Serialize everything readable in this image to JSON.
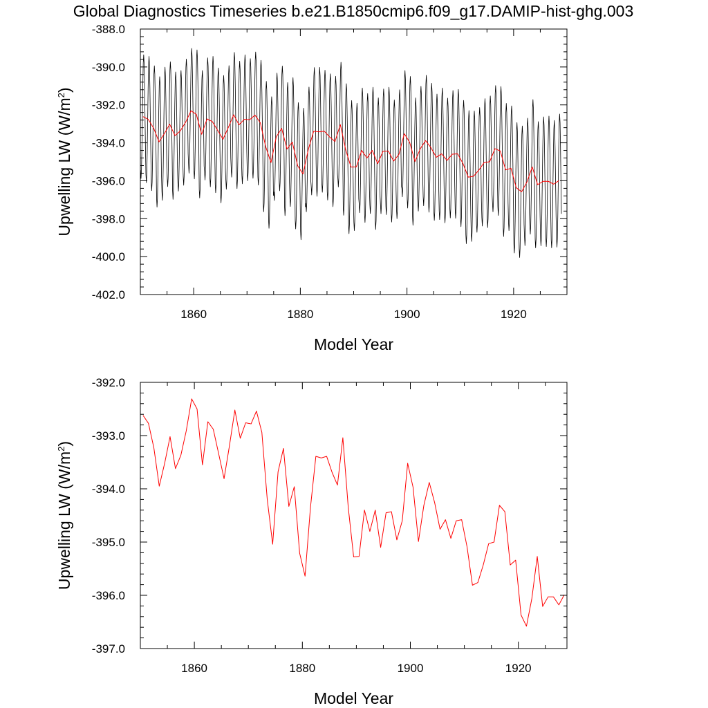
{
  "title": "Global Diagnostics Timeseries b.e21.B1850cmip6.f09_g17.DAMIP-hist-ghg.003",
  "colors": {
    "monthly": "#000000",
    "annual": "#ff0000",
    "axes": "#000000"
  },
  "chart_data": [
    {
      "type": "line",
      "xlabel": "Model Year",
      "ylabel_main": "Upwelling LW (W/m",
      "ylabel_sup": "2",
      "ylabel_close": ")",
      "xlim": [
        1850,
        1930
      ],
      "ylim": [
        -402,
        -388
      ],
      "xticks": [
        1860,
        1880,
        1900,
        1920
      ],
      "xtick_labels": [
        "1860",
        "1880",
        "1900",
        "1920"
      ],
      "yticks": [
        -402,
        -400,
        -398,
        -396,
        -394,
        -392,
        -390,
        -388
      ],
      "ytick_labels": [
        "-402.0",
        "-400.0",
        "-398.0",
        "-396.0",
        "-394.0",
        "-392.0",
        "-390.0",
        "-388.0"
      ],
      "series": [
        {
          "role": "monthly",
          "color": "#000000",
          "monthly_annual_means": [
            -392.62,
            -392.77,
            -393.23,
            -393.95,
            -393.52,
            -393.02,
            -393.62,
            -393.37,
            -392.91,
            -392.31,
            -392.5,
            -393.55,
            -392.74,
            -392.88,
            -393.34,
            -393.81,
            -393.19,
            -392.52,
            -393.05,
            -392.76,
            -392.78,
            -392.54,
            -392.94,
            -394.2,
            -395.04,
            -393.68,
            -393.24,
            -394.33,
            -393.96,
            -395.21,
            -395.64,
            -394.35,
            -393.39,
            -393.42,
            -393.39,
            -393.69,
            -393.93,
            -393.04,
            -394.35,
            -395.28,
            -395.27,
            -394.4,
            -394.8,
            -394.4,
            -395.1,
            -394.45,
            -394.43,
            -394.96,
            -394.6,
            -393.52,
            -393.97,
            -394.99,
            -394.31,
            -393.88,
            -394.26,
            -394.76,
            -394.58,
            -394.93,
            -394.6,
            -394.58,
            -395.09,
            -395.81,
            -395.76,
            -395.43,
            -395.03,
            -395.0,
            -394.31,
            -394.43,
            -395.43,
            -395.34,
            -396.37,
            -396.58,
            -396.06,
            -395.27,
            -396.21,
            -396.03,
            -396.03,
            -396.18,
            -395.99
          ],
          "seasonal_half_amplitudes": [
            3.26,
            3.33,
            3.29,
            3.44,
            3.51,
            3.29,
            3.36,
            3.18,
            3.33,
            3.29,
            3.4,
            3.36,
            3.22,
            3.44,
            3.29,
            3.36,
            3.26,
            3.29,
            3.36,
            3.4,
            3.22,
            3.33,
            3.29,
            3.44,
            3.47,
            3.36,
            3.29,
            3.51,
            3.4,
            3.33,
            3.47,
            3.29,
            3.36,
            3.4,
            3.22,
            3.33,
            3.44,
            3.29,
            3.47,
            3.51,
            3.36,
            3.29,
            3.4,
            3.33,
            3.47,
            3.29,
            3.36,
            3.22,
            3.4,
            3.33,
            3.47,
            3.36,
            3.29,
            3.44,
            3.4,
            3.33,
            3.47,
            3.29,
            3.36,
            3.4,
            3.33,
            3.51,
            3.44,
            3.29,
            3.36,
            3.47,
            3.33,
            3.4,
            3.51,
            3.29,
            3.44,
            3.47,
            3.36,
            3.55,
            3.33,
            3.4,
            3.44,
            3.36,
            3.51
          ]
        },
        {
          "role": "annual",
          "color": "#ff0000",
          "x": [
            1850.5,
            1851.5,
            1852.5,
            1853.5,
            1854.5,
            1855.5,
            1856.5,
            1857.5,
            1858.5,
            1859.5,
            1860.5,
            1861.5,
            1862.5,
            1863.5,
            1864.5,
            1865.5,
            1866.5,
            1867.5,
            1868.5,
            1869.5,
            1870.5,
            1871.5,
            1872.5,
            1873.5,
            1874.5,
            1875.5,
            1876.5,
            1877.5,
            1878.5,
            1879.5,
            1880.5,
            1881.5,
            1882.5,
            1883.5,
            1884.5,
            1885.5,
            1886.5,
            1887.5,
            1888.5,
            1889.5,
            1890.5,
            1891.5,
            1892.5,
            1893.5,
            1894.5,
            1895.5,
            1896.5,
            1897.5,
            1898.5,
            1899.5,
            1900.5,
            1901.5,
            1902.5,
            1903.5,
            1904.5,
            1905.5,
            1906.5,
            1907.5,
            1908.5,
            1909.5,
            1910.5,
            1911.5,
            1912.5,
            1913.5,
            1914.5,
            1915.5,
            1916.5,
            1917.5,
            1918.5,
            1919.5,
            1920.5,
            1921.5,
            1922.5,
            1923.5,
            1924.5,
            1925.5,
            1926.5,
            1927.5,
            1928.5
          ],
          "y": [
            -392.62,
            -392.77,
            -393.23,
            -393.95,
            -393.52,
            -393.02,
            -393.62,
            -393.37,
            -392.91,
            -392.31,
            -392.5,
            -393.55,
            -392.74,
            -392.88,
            -393.34,
            -393.81,
            -393.19,
            -392.52,
            -393.05,
            -392.76,
            -392.78,
            -392.54,
            -392.94,
            -394.2,
            -395.04,
            -393.68,
            -393.24,
            -394.33,
            -393.96,
            -395.21,
            -395.64,
            -394.35,
            -393.39,
            -393.42,
            -393.39,
            -393.69,
            -393.93,
            -393.04,
            -394.35,
            -395.28,
            -395.27,
            -394.4,
            -394.8,
            -394.4,
            -395.1,
            -394.45,
            -394.43,
            -394.96,
            -394.6,
            -393.52,
            -393.97,
            -394.99,
            -394.31,
            -393.88,
            -394.26,
            -394.76,
            -394.58,
            -394.93,
            -394.6,
            -394.58,
            -395.09,
            -395.81,
            -395.76,
            -395.43,
            -395.03,
            -395.0,
            -394.31,
            -394.43,
            -395.43,
            -395.34,
            -396.37,
            -396.58,
            -396.06,
            -395.27,
            -396.21,
            -396.03,
            -396.03,
            -396.18,
            -395.99
          ]
        }
      ]
    },
    {
      "type": "line",
      "xlabel": "Model Year",
      "ylabel_main": "Upwelling LW (W/m",
      "ylabel_sup": "2",
      "ylabel_close": ")",
      "xlim": [
        1850,
        1929
      ],
      "ylim": [
        -397,
        -392
      ],
      "xticks": [
        1860,
        1880,
        1900,
        1920
      ],
      "xtick_labels": [
        "1860",
        "1880",
        "1900",
        "1920"
      ],
      "yticks": [
        -397,
        -396,
        -395,
        -394,
        -393,
        -392
      ],
      "ytick_labels": [
        "-397.0",
        "-396.0",
        "-395.0",
        "-394.0",
        "-393.0",
        "-392.0"
      ],
      "series": [
        {
          "role": "annual",
          "color": "#ff0000",
          "x": [
            1850.5,
            1851.5,
            1852.5,
            1853.5,
            1854.5,
            1855.5,
            1856.5,
            1857.5,
            1858.5,
            1859.5,
            1860.5,
            1861.5,
            1862.5,
            1863.5,
            1864.5,
            1865.5,
            1866.5,
            1867.5,
            1868.5,
            1869.5,
            1870.5,
            1871.5,
            1872.5,
            1873.5,
            1874.5,
            1875.5,
            1876.5,
            1877.5,
            1878.5,
            1879.5,
            1880.5,
            1881.5,
            1882.5,
            1883.5,
            1884.5,
            1885.5,
            1886.5,
            1887.5,
            1888.5,
            1889.5,
            1890.5,
            1891.5,
            1892.5,
            1893.5,
            1894.5,
            1895.5,
            1896.5,
            1897.5,
            1898.5,
            1899.5,
            1900.5,
            1901.5,
            1902.5,
            1903.5,
            1904.5,
            1905.5,
            1906.5,
            1907.5,
            1908.5,
            1909.5,
            1910.5,
            1911.5,
            1912.5,
            1913.5,
            1914.5,
            1915.5,
            1916.5,
            1917.5,
            1918.5,
            1919.5,
            1920.5,
            1921.5,
            1922.5,
            1923.5,
            1924.5,
            1925.5,
            1926.5,
            1927.5,
            1928.5
          ],
          "y": [
            -392.62,
            -392.77,
            -393.23,
            -393.95,
            -393.52,
            -393.02,
            -393.62,
            -393.37,
            -392.91,
            -392.31,
            -392.5,
            -393.55,
            -392.74,
            -392.88,
            -393.34,
            -393.81,
            -393.19,
            -392.52,
            -393.05,
            -392.76,
            -392.78,
            -392.54,
            -392.94,
            -394.2,
            -395.04,
            -393.68,
            -393.24,
            -394.33,
            -393.96,
            -395.21,
            -395.64,
            -394.35,
            -393.39,
            -393.42,
            -393.39,
            -393.69,
            -393.93,
            -393.04,
            -394.35,
            -395.28,
            -395.27,
            -394.4,
            -394.8,
            -394.4,
            -395.1,
            -394.45,
            -394.43,
            -394.96,
            -394.6,
            -393.52,
            -393.97,
            -394.99,
            -394.31,
            -393.88,
            -394.26,
            -394.76,
            -394.58,
            -394.93,
            -394.6,
            -394.58,
            -395.09,
            -395.81,
            -395.76,
            -395.43,
            -395.03,
            -395.0,
            -394.31,
            -394.43,
            -395.43,
            -395.34,
            -396.37,
            -396.58,
            -396.06,
            -395.27,
            -396.21,
            -396.03,
            -396.03,
            -396.18,
            -395.99
          ]
        }
      ]
    }
  ]
}
